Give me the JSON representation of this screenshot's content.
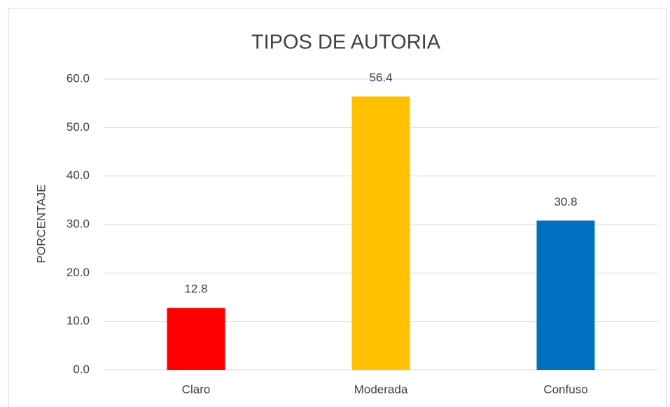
{
  "chart_data": {
    "type": "bar",
    "title": "TIPOS DE AUTORIA",
    "y_label": "PORCENTAJE",
    "categories": [
      "Claro",
      "Moderada",
      "Confuso"
    ],
    "values": [
      12.8,
      56.4,
      30.8
    ],
    "colors": [
      "#ff0000",
      "#ffc000",
      "#0070c0"
    ],
    "ylim": [
      0,
      60
    ],
    "yticks": [
      {
        "value": 0,
        "label": "0.0"
      },
      {
        "value": 10,
        "label": "10.0"
      },
      {
        "value": 20,
        "label": "20.0"
      },
      {
        "value": 30,
        "label": "30.0"
      },
      {
        "value": 40,
        "label": "40.0"
      },
      {
        "value": 50,
        "label": "50.0"
      },
      {
        "value": 60,
        "label": "60.0"
      }
    ],
    "grid": true,
    "data_labels": true
  }
}
